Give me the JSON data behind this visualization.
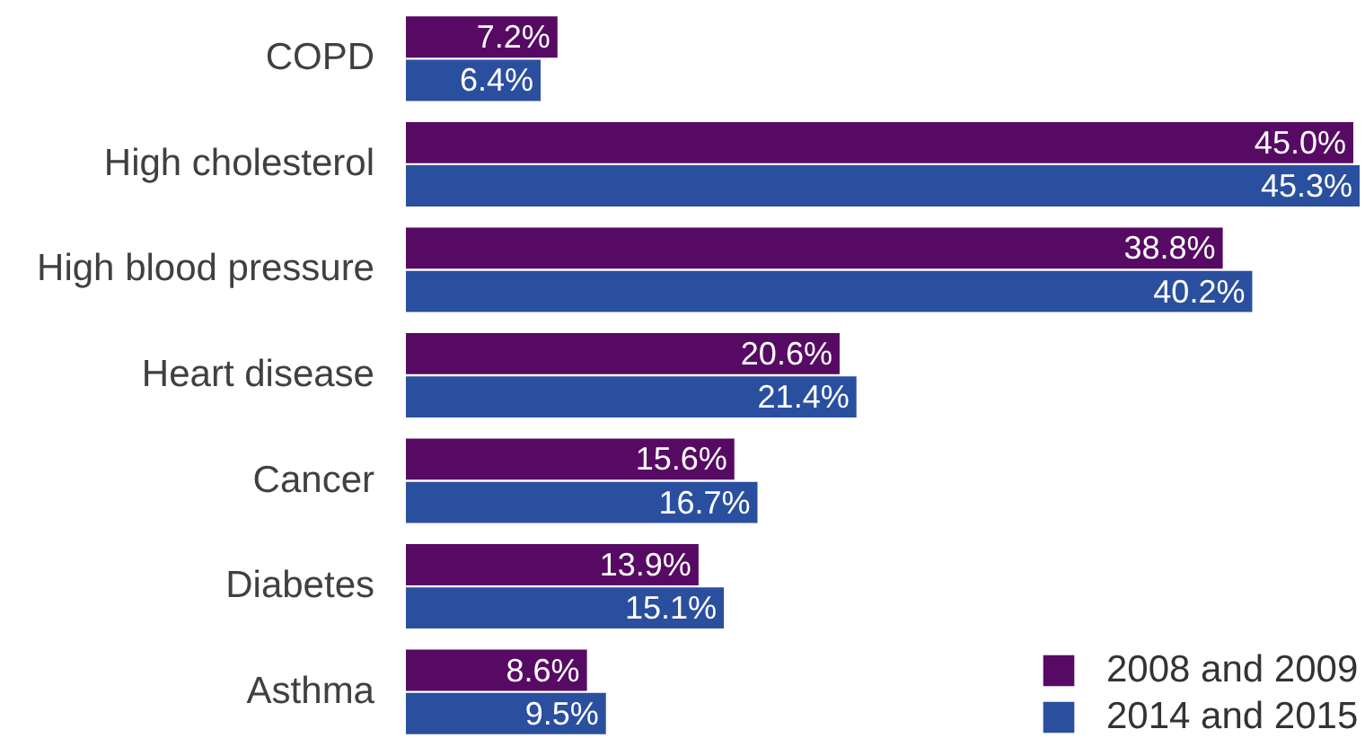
{
  "chart_data": {
    "type": "bar",
    "orientation": "horizontal",
    "tick_labels": "y",
    "legend": "bottom right",
    "categories": [
      "COPD",
      "High cholesterol",
      "High blood pressure",
      "Heart disease",
      "Cancer",
      "Diabetes",
      "Asthma"
    ],
    "series": [
      {
        "name": "2008 and 2009",
        "color": "#570a63",
        "values": [
          7.2,
          45.0,
          38.8,
          20.6,
          15.6,
          13.9,
          8.6
        ],
        "value_labels": [
          "7.2%",
          "45.0%",
          "38.8%",
          "20.6%",
          "15.6%",
          "13.9%",
          "8.6%"
        ]
      },
      {
        "name": "2014 and 2015",
        "color": "#2a4f9f",
        "values": [
          6.4,
          45.3,
          40.2,
          21.4,
          16.7,
          15.1,
          9.5
        ],
        "value_labels": [
          "6.4%",
          "45.3%",
          "40.2%",
          "21.4%",
          "16.7%",
          "15.1%",
          "9.5%"
        ]
      }
    ]
  }
}
